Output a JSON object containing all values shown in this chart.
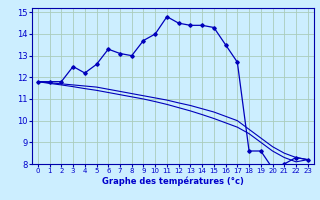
{
  "xlabel": "Graphe des températures (°c)",
  "background_color": "#cceeff",
  "grid_color": "#aaccbb",
  "line_color": "#0000bb",
  "xlim": [
    -0.5,
    23.5
  ],
  "ylim": [
    8,
    15.2
  ],
  "xticks": [
    0,
    1,
    2,
    3,
    4,
    5,
    6,
    7,
    8,
    9,
    10,
    11,
    12,
    13,
    14,
    15,
    16,
    17,
    18,
    19,
    20,
    21,
    22,
    23
  ],
  "yticks": [
    8,
    9,
    10,
    11,
    12,
    13,
    14,
    15
  ],
  "line1_x": [
    0,
    1,
    2,
    3,
    4,
    5,
    6,
    7,
    8,
    9,
    10,
    11,
    12,
    13,
    14,
    15,
    16,
    17,
    18,
    19,
    20,
    21,
    22,
    23
  ],
  "line1_y": [
    11.8,
    11.8,
    11.8,
    12.5,
    12.2,
    12.6,
    13.3,
    13.1,
    13.0,
    13.7,
    14.0,
    14.8,
    14.5,
    14.4,
    14.4,
    14.3,
    13.5,
    12.7,
    8.6,
    8.6,
    7.8,
    8.0,
    8.3,
    8.2
  ],
  "line2_x": [
    0,
    1,
    2,
    3,
    4,
    5,
    6,
    7,
    8,
    9,
    10,
    11,
    12,
    13,
    14,
    15,
    16,
    17,
    18,
    19,
    20,
    21,
    22,
    23
  ],
  "line2_y": [
    11.8,
    11.75,
    11.7,
    11.65,
    11.6,
    11.55,
    11.45,
    11.35,
    11.25,
    11.15,
    11.05,
    10.95,
    10.82,
    10.7,
    10.55,
    10.4,
    10.2,
    10.0,
    9.6,
    9.2,
    8.8,
    8.5,
    8.3,
    8.2
  ],
  "line3_x": [
    0,
    1,
    2,
    3,
    4,
    5,
    6,
    7,
    8,
    9,
    10,
    11,
    12,
    13,
    14,
    15,
    16,
    17,
    18,
    19,
    20,
    21,
    22,
    23
  ],
  "line3_y": [
    11.8,
    11.72,
    11.65,
    11.57,
    11.48,
    11.4,
    11.3,
    11.2,
    11.1,
    11.0,
    10.88,
    10.75,
    10.6,
    10.45,
    10.28,
    10.1,
    9.9,
    9.7,
    9.4,
    9.0,
    8.6,
    8.3,
    8.1,
    8.2
  ]
}
